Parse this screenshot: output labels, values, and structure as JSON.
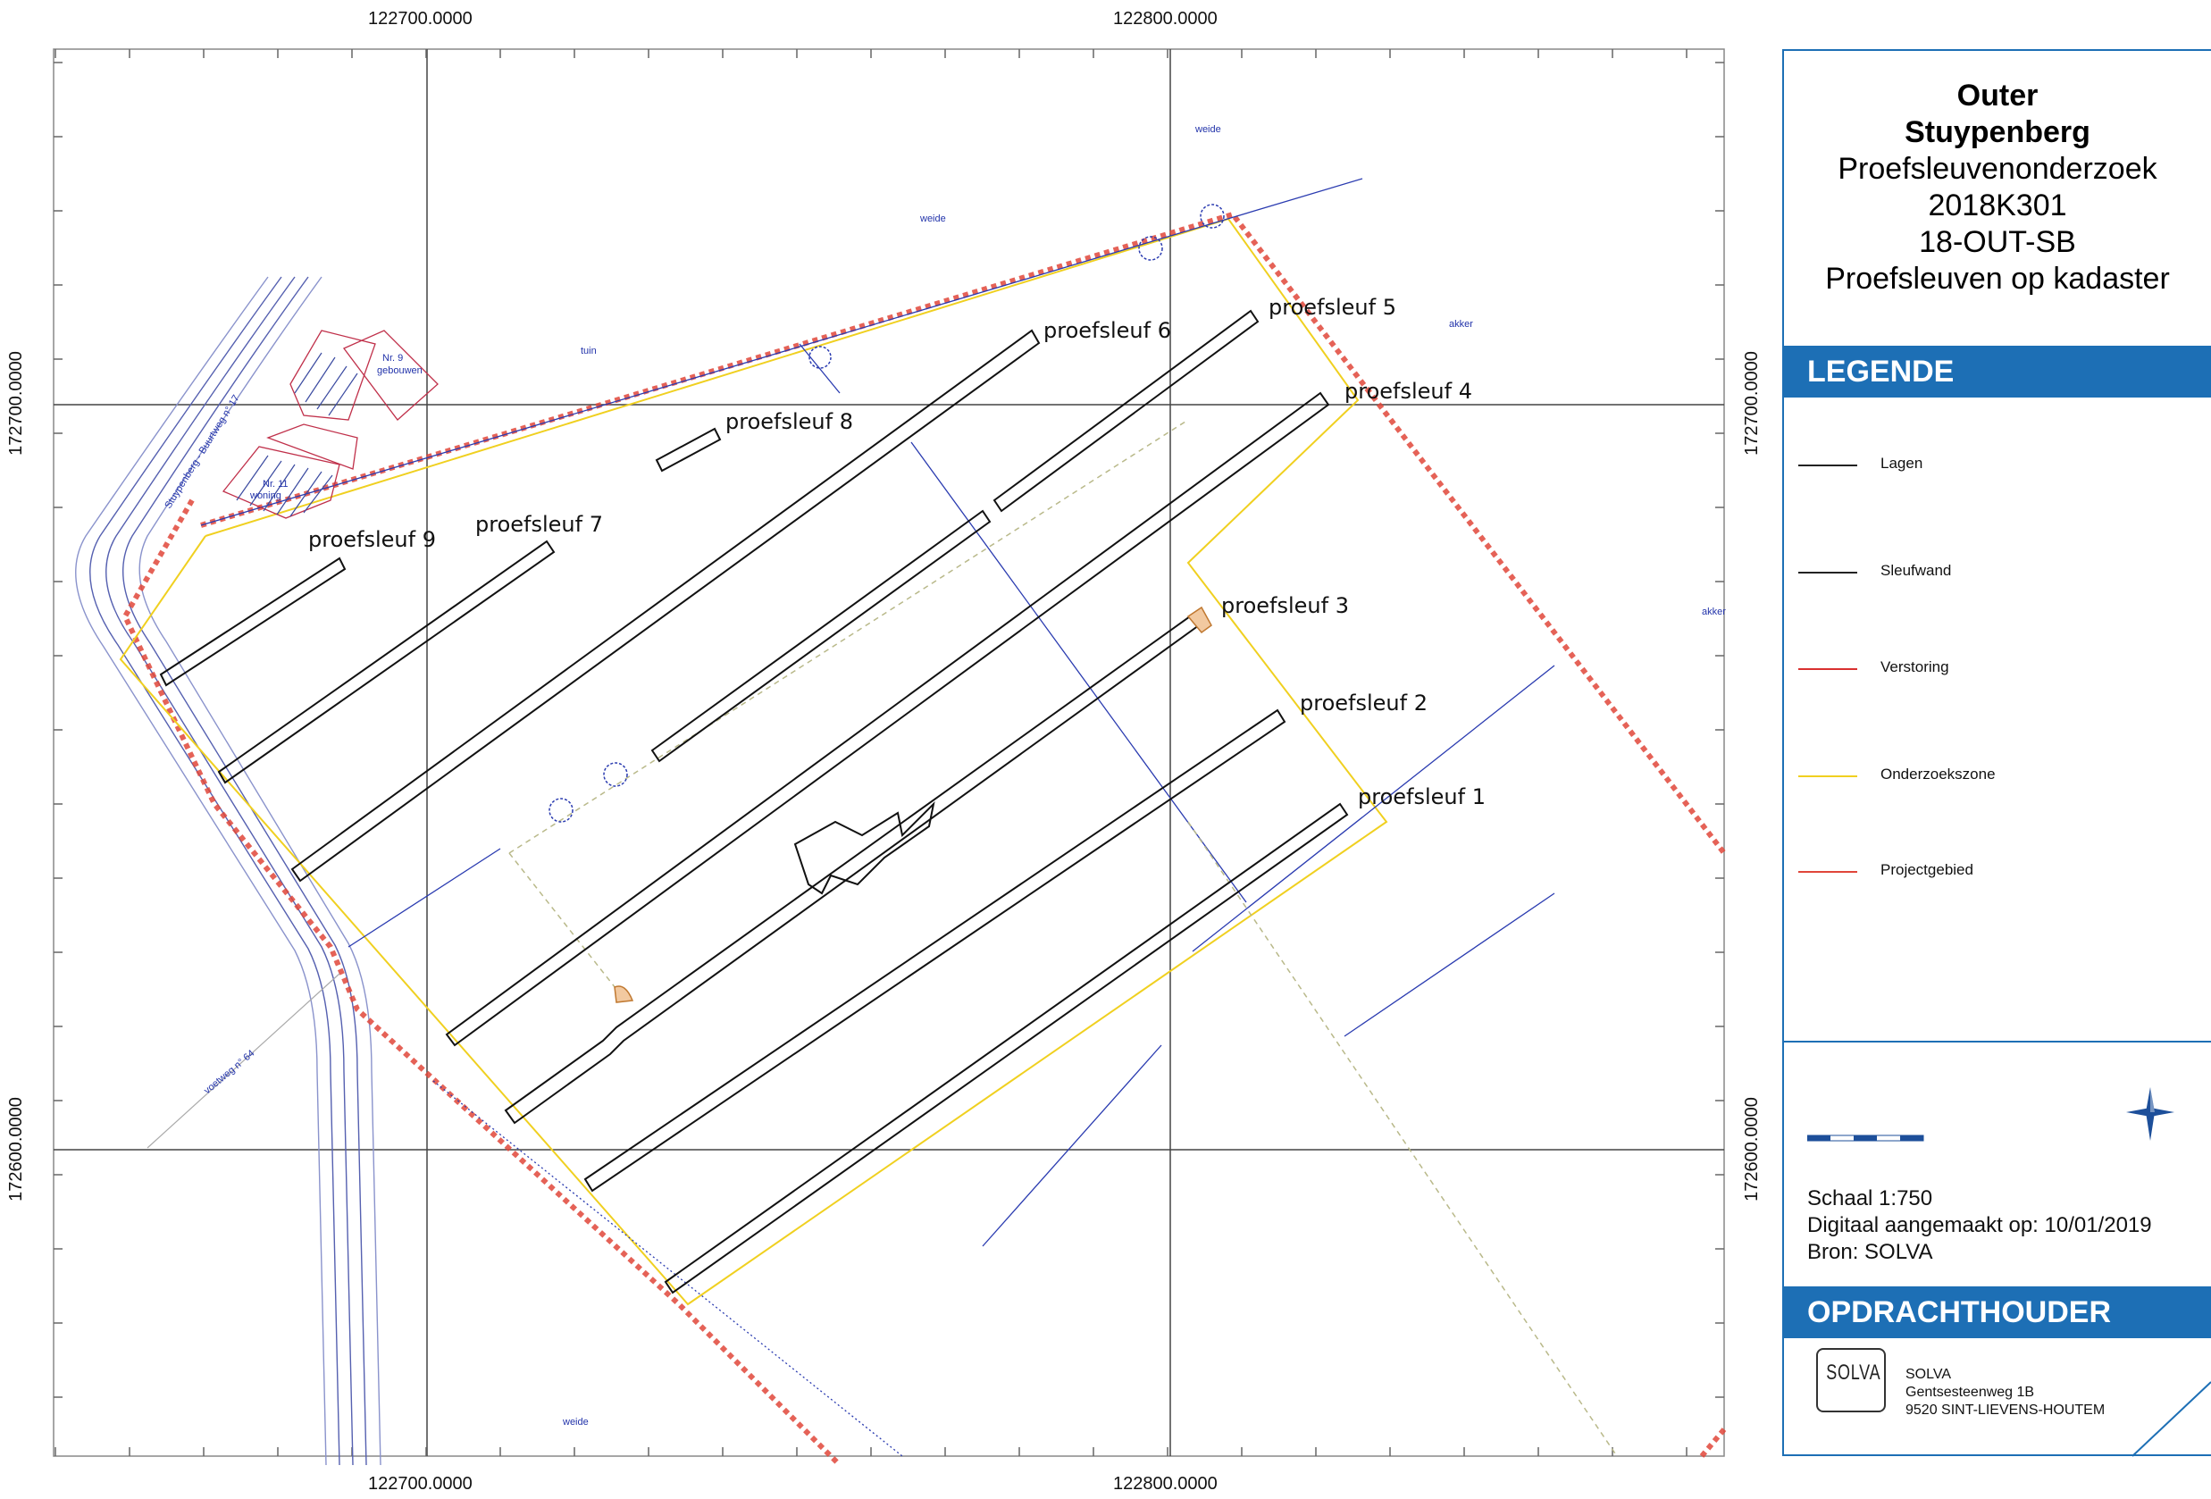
{
  "grid_labels": {
    "x_left": "122700.0000",
    "x_right": "122800.0000",
    "y_top": "172700.0000",
    "y_bottom": "172600.0000"
  },
  "trench_labels": [
    "proefsleuf 1",
    "proefsleuf 2",
    "proefsleuf 3",
    "proefsleuf 4",
    "proefsleuf 5",
    "proefsleuf 6",
    "proefsleuf 7",
    "proefsleuf 8",
    "proefsleuf 9"
  ],
  "map_text": {
    "weide_1": "weide",
    "weide_2": "weide",
    "weide_3": "weide",
    "tuin": "tuin",
    "akker_1": "akker",
    "akker_2": "akker",
    "nr9": "Nr. 9",
    "gebouwen": "gebouwen",
    "nr11": "Nr. 11",
    "woning": "woning",
    "road": "Stuypenberg - Buurtweg n° 17",
    "voetweg": "voetweg n° 64"
  },
  "panel": {
    "title_bold_1": "Outer",
    "title_bold_2": "Stuypenberg",
    "line_1": "Proefsleuvenonderzoek",
    "line_2": "2018K301",
    "line_3": "18-OUT-SB",
    "line_4": "Proefsleuven op kadaster",
    "legend_heading": "LEGENDE",
    "legend": [
      {
        "label": "Lagen",
        "color": "#222222"
      },
      {
        "label": "Sleufwand",
        "color": "#222222"
      },
      {
        "label": "Verstoring",
        "color": "#d9302f"
      },
      {
        "label": "Onderzoekszone",
        "color": "#f0d020"
      },
      {
        "label": "Projectgebied",
        "color": "#e0463a"
      }
    ],
    "scale": "Schaal 1:750",
    "created": "Digitaal aangemaakt op: 10/01/2019",
    "source": "Bron: SOLVA",
    "client_heading": "OPDRACHTHOUDER",
    "logo_text": "SOLVA",
    "company": "SOLVA",
    "street": "Gentsesteenweg 1B",
    "city": "9520 SINT-LIEVENS-HOUTEM"
  },
  "colors": {
    "accent": "#1d6fb5",
    "project_area": "#e0463a",
    "research_zone": "#f0d020",
    "cadastre": "#2a3bb0"
  }
}
